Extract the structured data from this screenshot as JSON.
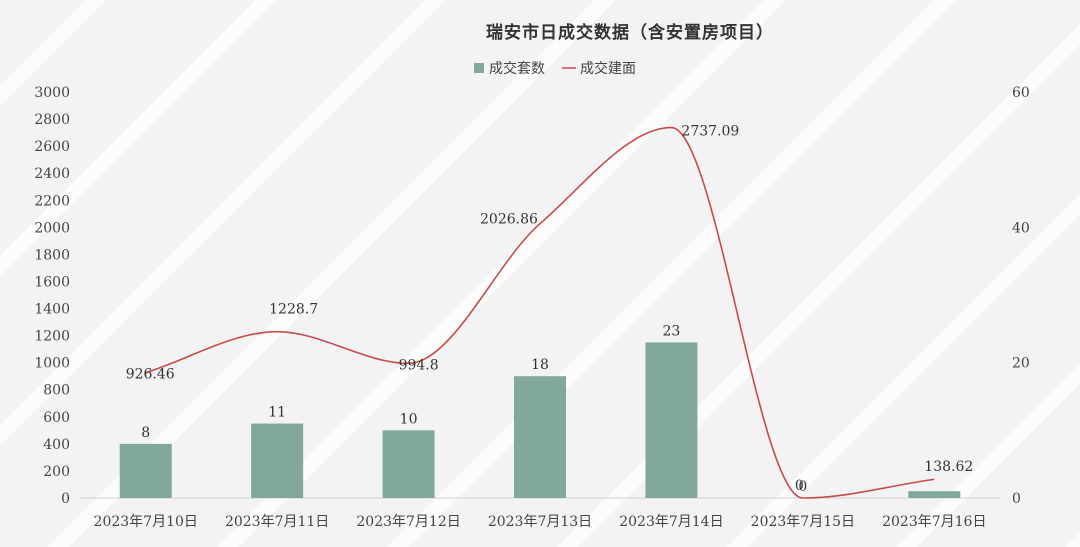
{
  "chart_data": {
    "type": "bar",
    "title": "瑞安市日成交数据（含安置房项目）",
    "categories": [
      "2023年7月10日",
      "2023年7月11日",
      "2023年7月12日",
      "2023年7月13日",
      "2023年7月14日",
      "2023年7月15日",
      "2023年7月16日"
    ],
    "series": [
      {
        "name": "成交套数",
        "type": "bar",
        "axis": "right",
        "color": "#82a899",
        "values": [
          8,
          11,
          10,
          18,
          23,
          0,
          1
        ],
        "labels": [
          "8",
          "11",
          "10",
          "18",
          "23",
          "0",
          ""
        ]
      },
      {
        "name": "成交建面",
        "type": "line",
        "axis": "left",
        "color": "#c84b4b",
        "smooth": true,
        "values": [
          926.46,
          1228.7,
          994.8,
          2026.86,
          2737.09,
          0,
          138.62
        ],
        "labels": [
          "926.46",
          "1228.7",
          "994.8",
          "2026.86",
          "2737.09",
          "0",
          "138.62"
        ]
      }
    ],
    "y_left": {
      "min": 0,
      "max": 3000,
      "ticks": [
        "0",
        "200",
        "400",
        "600",
        "800",
        "1000",
        "1200",
        "1400",
        "1600",
        "1800",
        "2000",
        "2200",
        "2400",
        "2600",
        "2800",
        "3000"
      ]
    },
    "y_right": {
      "min": 0,
      "max": 60,
      "ticks": [
        "0",
        "20",
        "40",
        "60"
      ]
    },
    "legend": "top-center",
    "grid": false
  }
}
